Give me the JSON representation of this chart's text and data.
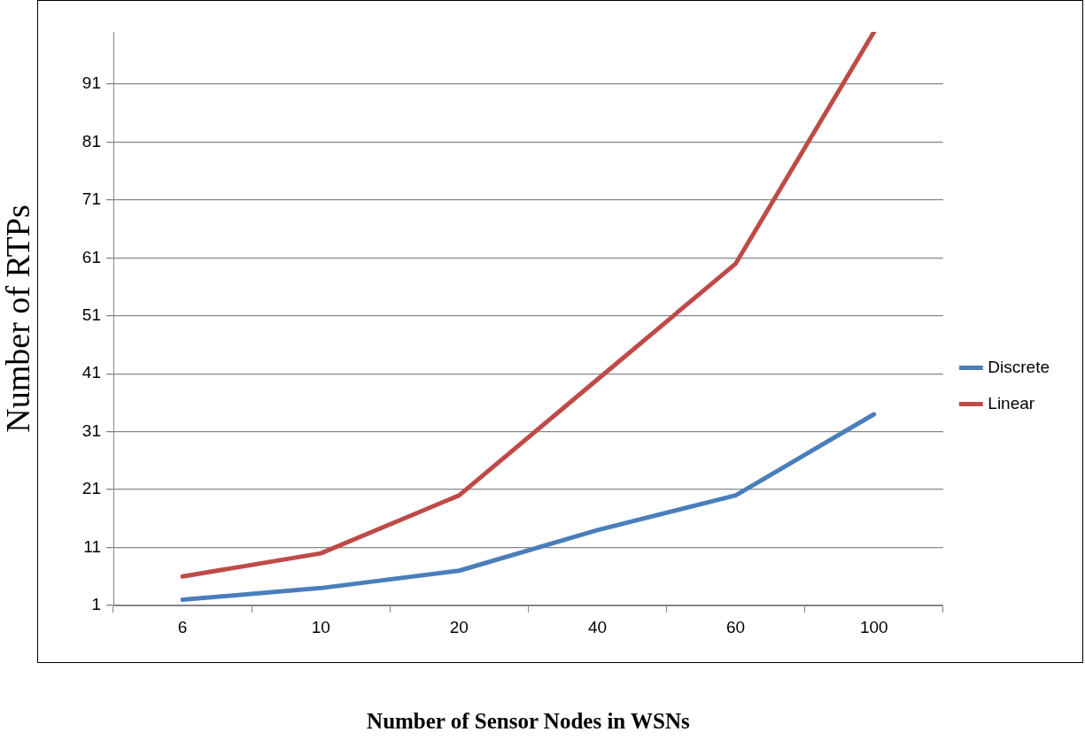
{
  "chart_data": {
    "type": "line",
    "xlabel": "Number of Sensor Nodes in WSNs",
    "ylabel": "Number of RTPs",
    "categories": [
      "6",
      "10",
      "20",
      "40",
      "60",
      "100"
    ],
    "series": [
      {
        "name": "Discrete",
        "color": "#4a7ebb",
        "values": [
          2,
          4,
          7,
          14,
          20,
          34
        ]
      },
      {
        "name": "Linear",
        "color": "#be4b48",
        "values": [
          6,
          10,
          20,
          40,
          60,
          100
        ]
      }
    ],
    "ylim": [
      1,
      100
    ],
    "yticks": [
      1,
      11,
      21,
      31,
      41,
      51,
      61,
      71,
      81,
      91
    ],
    "grid": "y",
    "legend": "right",
    "marker": "none",
    "line_style": "solid"
  }
}
